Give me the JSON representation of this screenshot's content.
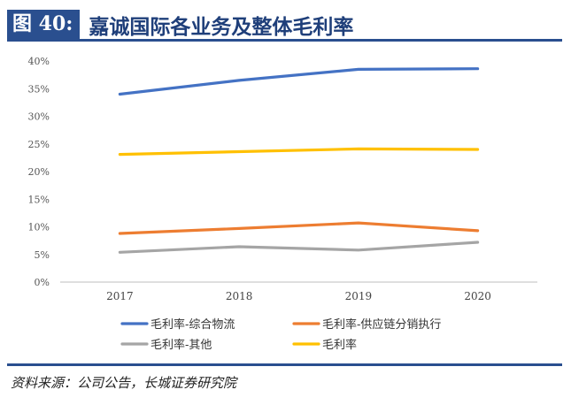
{
  "header": {
    "figure_label": "图 40:",
    "title": "嘉诚国际各业务及整体毛利率"
  },
  "footer": {
    "source": "资料来源：公司公告，长城证券研究院"
  },
  "chart_data": {
    "type": "line",
    "categories": [
      "2017",
      "2018",
      "2019",
      "2020"
    ],
    "ylim": [
      0,
      40
    ],
    "yticks": [
      "0%",
      "5%",
      "10%",
      "15%",
      "20%",
      "25%",
      "30%",
      "35%",
      "40%"
    ],
    "grid": false,
    "legend_position": "bottom",
    "series": [
      {
        "name": "毛利率-综合物流",
        "color": "#4472c4",
        "values": [
          34.0,
          36.5,
          38.5,
          38.6
        ]
      },
      {
        "name": "毛利率-供应链分销执行",
        "color": "#ed7d31",
        "values": [
          8.8,
          9.7,
          10.7,
          9.3
        ]
      },
      {
        "name": "毛利率-其他",
        "color": "#a5a5a5",
        "values": [
          5.4,
          6.4,
          5.8,
          7.2
        ]
      },
      {
        "name": "毛利率",
        "color": "#ffc000",
        "values": [
          23.1,
          23.6,
          24.1,
          24.0
        ]
      }
    ]
  }
}
